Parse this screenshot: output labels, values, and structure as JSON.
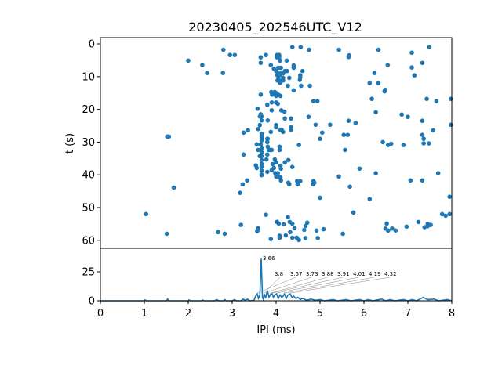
{
  "chart_data": [
    {
      "type": "scatter",
      "title": "20230405_202546UTC_V12",
      "xlabel": "",
      "ylabel": "t (s)",
      "xlim": [
        0,
        8
      ],
      "ylim": [
        62,
        -2
      ],
      "yticks": [
        "0",
        "10",
        "20",
        "30",
        "40",
        "50",
        "60"
      ],
      "color": "#1f77b4",
      "points": [
        [
          2.0,
          5.1
        ],
        [
          2.32,
          6.5
        ],
        [
          2.43,
          8.9
        ],
        [
          2.8,
          1.8
        ],
        [
          2.95,
          3.4
        ],
        [
          3.06,
          3.4
        ],
        [
          2.79,
          8.9
        ],
        [
          1.52,
          28.3
        ],
        [
          1.56,
          28.3
        ],
        [
          1.67,
          43.9
        ],
        [
          1.04,
          52
        ],
        [
          1.51,
          58
        ],
        [
          2.68,
          57.5
        ],
        [
          2.83,
          58
        ],
        [
          3.2,
          55.3
        ],
        [
          3.18,
          45.5
        ],
        [
          3.24,
          42.9
        ],
        [
          3.34,
          41.7
        ],
        [
          3.26,
          33.8
        ],
        [
          3.26,
          27.1
        ],
        [
          3.36,
          26.4
        ],
        [
          3.58,
          56.8
        ],
        [
          3.59,
          56.3
        ],
        [
          3.57,
          57.2
        ],
        [
          3.77,
          52.2
        ],
        [
          3.88,
          59.6
        ],
        [
          4.02,
          54.4
        ],
        [
          4.08,
          58.6
        ],
        [
          3.65,
          4.1
        ],
        [
          3.65,
          5.8
        ],
        [
          3.77,
          3.4
        ],
        [
          3.88,
          6.5
        ],
        [
          4.02,
          3.4
        ],
        [
          4.07,
          3.4
        ],
        [
          3.95,
          7.6
        ],
        [
          4.04,
          9.0
        ],
        [
          4.1,
          9.0
        ],
        [
          4.05,
          10.7
        ],
        [
          4.1,
          11.3
        ],
        [
          3.65,
          15.5
        ],
        [
          3.89,
          14.7
        ],
        [
          3.93,
          15.2
        ],
        [
          3.97,
          14.7
        ],
        [
          3.91,
          15.5
        ],
        [
          4.05,
          15.5
        ],
        [
          3.9,
          17.9
        ],
        [
          4.0,
          17.9
        ],
        [
          3.8,
          18.6
        ],
        [
          3.58,
          19.8
        ],
        [
          3.9,
          20.3
        ],
        [
          3.65,
          21.5
        ],
        [
          3.67,
          22.2
        ],
        [
          3.63,
          22.2
        ],
        [
          3.67,
          23.4
        ],
        [
          3.81,
          23.4
        ],
        [
          4.0,
          24.8
        ],
        [
          3.63,
          24.8
        ],
        [
          3.59,
          26.0
        ],
        [
          3.67,
          27.4
        ],
        [
          3.67,
          28.1
        ],
        [
          3.67,
          28.8
        ],
        [
          3.67,
          29.5
        ],
        [
          3.65,
          30.7
        ],
        [
          3.67,
          31.9
        ],
        [
          3.67,
          33.1
        ],
        [
          3.67,
          34.3
        ],
        [
          3.67,
          35.5
        ],
        [
          3.67,
          36.7
        ],
        [
          3.67,
          37.5
        ],
        [
          3.67,
          38.7
        ],
        [
          3.67,
          39.9
        ],
        [
          3.56,
          30.7
        ],
        [
          3.59,
          32.4
        ],
        [
          3.88,
          26.9
        ],
        [
          3.8,
          29
        ],
        [
          3.8,
          30
        ],
        [
          3.81,
          29
        ],
        [
          4.08,
          31.4
        ],
        [
          3.81,
          31.4
        ],
        [
          3.83,
          32.4
        ],
        [
          3.87,
          32.4
        ],
        [
          3.9,
          32.4
        ],
        [
          3.8,
          33.8
        ],
        [
          3.78,
          35.3
        ],
        [
          3.63,
          34.3
        ],
        [
          3.92,
          36.7
        ],
        [
          3.97,
          35.3
        ],
        [
          3.95,
          37.9
        ],
        [
          3.9,
          38.6
        ],
        [
          3.54,
          37.1
        ],
        [
          3.56,
          37.9
        ],
        [
          3.8,
          39.1
        ],
        [
          3.98,
          39.5
        ],
        [
          4.04,
          39.5
        ],
        [
          4.1,
          40.8
        ],
        [
          3.67,
          40.1
        ],
        [
          4.1,
          37.2
        ],
        [
          4.13,
          26.3
        ],
        [
          4.1,
          26.3
        ],
        [
          4.12,
          20.3
        ],
        [
          4.37,
          1.0
        ],
        [
          4.56,
          1.0
        ],
        [
          4.75,
          1.8
        ],
        [
          5.43,
          1.8
        ],
        [
          5.66,
          3.5
        ],
        [
          5.65,
          4.0
        ],
        [
          6.33,
          1.8
        ],
        [
          7.09,
          2.7
        ],
        [
          7.49,
          1.0
        ],
        [
          7.33,
          5.8
        ],
        [
          6.54,
          6.5
        ],
        [
          7.09,
          7.2
        ],
        [
          7.15,
          9.6
        ],
        [
          6.24,
          8.9
        ],
        [
          6.13,
          12.0
        ],
        [
          6.33,
          12.0
        ],
        [
          6.48,
          14.0
        ],
        [
          6.47,
          14.5
        ],
        [
          6.18,
          16.8
        ],
        [
          7.43,
          16.8
        ],
        [
          7.65,
          17.5
        ],
        [
          7.98,
          16.8
        ],
        [
          4.85,
          17.5
        ],
        [
          4.94,
          17.5
        ],
        [
          6.27,
          20.9
        ],
        [
          6.86,
          21.6
        ],
        [
          7.0,
          22.3
        ],
        [
          7.33,
          23.5
        ],
        [
          7.58,
          26.4
        ],
        [
          7.98,
          24.7
        ],
        [
          4.74,
          22.3
        ],
        [
          4.9,
          24.7
        ],
        [
          5.23,
          24.7
        ],
        [
          5.65,
          23.5
        ],
        [
          5.81,
          24.2
        ],
        [
          5.05,
          27.1
        ],
        [
          5.0,
          29.0
        ],
        [
          5.54,
          27.8
        ],
        [
          5.63,
          27.8
        ],
        [
          5.57,
          32.4
        ],
        [
          4.52,
          30.9
        ],
        [
          6.43,
          30.0
        ],
        [
          6.55,
          30.9
        ],
        [
          6.62,
          30.5
        ],
        [
          6.9,
          30.9
        ],
        [
          7.33,
          27.8
        ],
        [
          7.36,
          29
        ],
        [
          7.36,
          30.4
        ],
        [
          7.48,
          30.4
        ],
        [
          5.9,
          38.1
        ],
        [
          5.43,
          40.5
        ],
        [
          6.27,
          39.5
        ],
        [
          5.68,
          43.6
        ],
        [
          6.13,
          47.4
        ],
        [
          7.06,
          41.7
        ],
        [
          7.33,
          41.7
        ],
        [
          7.69,
          39.5
        ],
        [
          7.95,
          46.7
        ],
        [
          5.0,
          47.0
        ],
        [
          5.76,
          51.5
        ],
        [
          7.78,
          52
        ],
        [
          7.86,
          52.5
        ],
        [
          7.95,
          52
        ],
        [
          7.24,
          54.4
        ],
        [
          7.45,
          55
        ],
        [
          7.52,
          55.3
        ],
        [
          7.45,
          55.7
        ],
        [
          7.38,
          56
        ],
        [
          6.97,
          55.8
        ],
        [
          6.52,
          54.9
        ],
        [
          6.49,
          56.4
        ],
        [
          6.55,
          57
        ],
        [
          6.64,
          56.4
        ],
        [
          6.72,
          57
        ],
        [
          5.52,
          58
        ],
        [
          5.08,
          56.6
        ],
        [
          4.92,
          57
        ],
        [
          4.95,
          59.3
        ],
        [
          4.67,
          59.3
        ],
        [
          4.02,
          54.4
        ],
        [
          4.06,
          54.9
        ],
        [
          4.17,
          55.1
        ],
        [
          4.27,
          52.9
        ],
        [
          4.31,
          54.4
        ],
        [
          4.37,
          54.9
        ],
        [
          4.42,
          56.3
        ],
        [
          4.32,
          57.5
        ],
        [
          4.22,
          58.5
        ],
        [
          4.08,
          59.2
        ],
        [
          4.37,
          59.2
        ],
        [
          4.47,
          59.2
        ],
        [
          4.52,
          59.9
        ],
        [
          4.64,
          56.8
        ],
        [
          4.67,
          55.6
        ],
        [
          4.71,
          54.6
        ],
        [
          4.02,
          4.1
        ],
        [
          4.07,
          4.1
        ],
        [
          4.09,
          5.1
        ],
        [
          4.24,
          5.1
        ],
        [
          4.05,
          7.3
        ],
        [
          4.11,
          7.3
        ],
        [
          4.4,
          6.6
        ],
        [
          4.4,
          7.3
        ],
        [
          4.0,
          8.3
        ],
        [
          4.25,
          8.3
        ],
        [
          4.2,
          8.3
        ],
        [
          4.6,
          8.3
        ],
        [
          4.16,
          9.0
        ],
        [
          4.03,
          9.6
        ],
        [
          4.08,
          9.6
        ],
        [
          4.55,
          9.6
        ],
        [
          4.55,
          10.3
        ],
        [
          4.54,
          11.0
        ],
        [
          4.16,
          10.4
        ],
        [
          4.16,
          11.2
        ],
        [
          4.3,
          10.4
        ],
        [
          4.03,
          11.2
        ],
        [
          4.09,
          11.9
        ],
        [
          4.27,
          12.8
        ],
        [
          4.57,
          12.8
        ],
        [
          4.77,
          12.8
        ],
        [
          4.4,
          14.2
        ],
        [
          4.0,
          15.0
        ],
        [
          4.0,
          15.9
        ],
        [
          4.1,
          15.9
        ],
        [
          4.04,
          18.3
        ],
        [
          4.19,
          20.7
        ],
        [
          4.2,
          22.8
        ],
        [
          4.34,
          22.8
        ],
        [
          4.0,
          25.5
        ],
        [
          4.11,
          26.2
        ],
        [
          4.16,
          26.9
        ],
        [
          4.34,
          25.5
        ],
        [
          4.34,
          26.2
        ],
        [
          4.08,
          32.4
        ],
        [
          4.0,
          36.2
        ],
        [
          4.2,
          36.2
        ],
        [
          4.28,
          35.5
        ],
        [
          4.11,
          38.1
        ],
        [
          4.37,
          37.6
        ],
        [
          4.0,
          40.5
        ],
        [
          4.05,
          40.5
        ],
        [
          4.11,
          41.7
        ],
        [
          4.28,
          42.4
        ],
        [
          4.3,
          42.9
        ],
        [
          4.48,
          41.9
        ],
        [
          4.55,
          41.9
        ],
        [
          4.49,
          42.9
        ],
        [
          4.85,
          41.9
        ],
        [
          4.87,
          42.4
        ],
        [
          4.84,
          42.9
        ]
      ]
    },
    {
      "type": "line",
      "xlabel": "IPI (ms)",
      "ylabel": "",
      "xlim": [
        0,
        8
      ],
      "ylim": [
        0,
        40
      ],
      "xticks": [
        "0",
        "1",
        "2",
        "3",
        "4",
        "5",
        "6",
        "7",
        "8"
      ],
      "yticks": [
        "0",
        "25"
      ],
      "color": "#1f77b4",
      "x": [
        0,
        1.0,
        1.02,
        1.04,
        1.5,
        1.53,
        1.56,
        2.0,
        2.02,
        2.04,
        2.3,
        2.33,
        2.36,
        2.6,
        2.65,
        2.7,
        2.8,
        2.83,
        2.86,
        3.0,
        3.05,
        3.1,
        3.2,
        3.25,
        3.3,
        3.35,
        3.4,
        3.5,
        3.53,
        3.57,
        3.6,
        3.63,
        3.66,
        3.69,
        3.71,
        3.73,
        3.76,
        3.8,
        3.84,
        3.88,
        3.91,
        3.94,
        3.97,
        4.01,
        4.05,
        4.09,
        4.13,
        4.16,
        4.19,
        4.23,
        4.27,
        4.32,
        4.36,
        4.4,
        4.45,
        4.5,
        4.55,
        4.6,
        4.7,
        4.8,
        4.9,
        5.0,
        5.1,
        5.3,
        5.4,
        5.6,
        5.7,
        5.9,
        6.0,
        6.1,
        6.2,
        6.4,
        6.5,
        6.6,
        6.7,
        6.9,
        7.0,
        7.1,
        7.2,
        7.35,
        7.45,
        7.6,
        7.7,
        7.9,
        8.0
      ],
      "y": [
        0,
        0,
        0.8,
        0,
        0,
        1.5,
        0,
        0,
        0.8,
        0,
        0,
        0.7,
        0,
        0,
        1,
        0,
        0,
        1,
        0,
        0,
        1,
        0,
        0,
        1.5,
        0.5,
        1.5,
        0,
        0.5,
        4,
        6,
        2,
        5,
        37,
        3,
        1,
        6,
        2,
        9,
        3,
        6,
        6,
        3,
        5,
        6,
        2,
        5,
        3,
        4,
        6,
        2,
        5,
        6,
        3,
        4,
        2,
        3,
        1,
        2,
        0.5,
        1.5,
        0.5,
        1,
        0,
        1,
        0,
        1,
        0,
        1,
        0,
        1,
        0,
        1.5,
        0,
        1,
        0,
        1,
        0,
        1,
        0,
        3,
        1,
        1.5,
        0,
        1,
        0
      ],
      "annotations": [
        {
          "x": 3.66,
          "y": 37,
          "label": "3.66"
        },
        {
          "x": 3.8,
          "y": 9,
          "label": "3.8"
        },
        {
          "x": 3.57,
          "y": 6,
          "label": "3.57"
        },
        {
          "x": 3.73,
          "y": 6,
          "label": "3.73"
        },
        {
          "x": 3.88,
          "y": 6,
          "label": "3.88"
        },
        {
          "x": 3.91,
          "y": 6,
          "label": "3.91"
        },
        {
          "x": 4.01,
          "y": 6,
          "label": "4.01"
        },
        {
          "x": 4.19,
          "y": 6,
          "label": "4.19"
        },
        {
          "x": 4.32,
          "y": 6,
          "label": "4.32"
        }
      ]
    }
  ]
}
